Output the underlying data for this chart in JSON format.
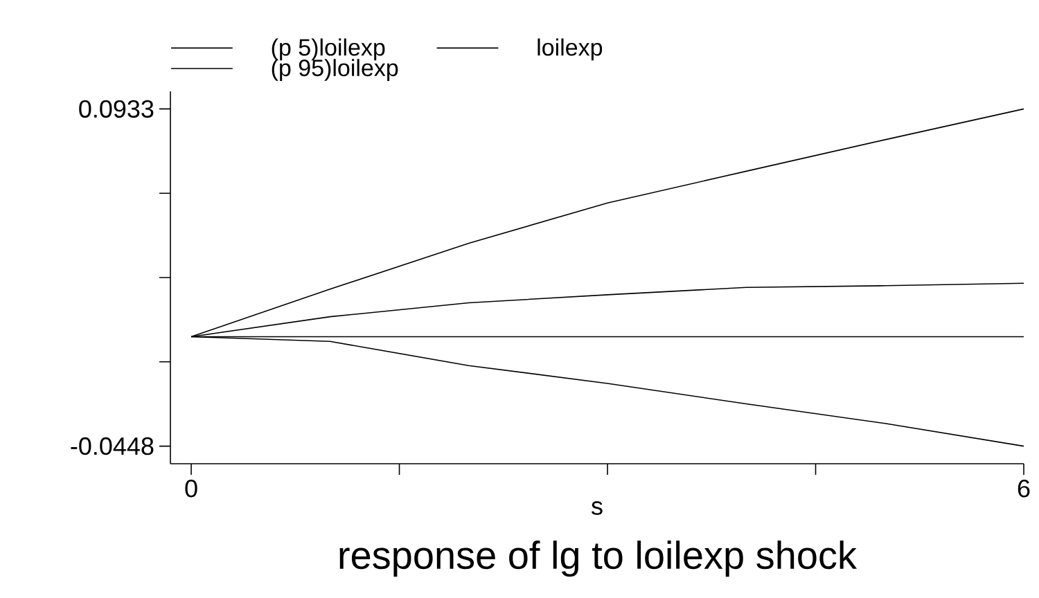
{
  "chart_data": {
    "type": "line",
    "title": "response of lg to loilexp shock",
    "xlabel": "s",
    "x": [
      0,
      1,
      2,
      3,
      4,
      5,
      6
    ],
    "series": [
      {
        "name": "(p 5)loilexp",
        "color": "#000000",
        "values": [
          0,
          -0.0019,
          -0.0118,
          -0.0191,
          -0.0275,
          -0.0355,
          -0.0448
        ]
      },
      {
        "name": "loilexp",
        "color": "#000000",
        "values": [
          0,
          0.0082,
          0.0139,
          0.0172,
          0.0202,
          0.0209,
          0.0219
        ]
      },
      {
        "name": "(p 95)loilexp",
        "color": "#000000",
        "values": [
          0,
          0.0195,
          0.0383,
          0.0548,
          0.0678,
          0.0807,
          0.0933
        ]
      }
    ],
    "xlim": [
      -0.15,
      6
    ],
    "ylim": [
      -0.052,
      0.1005
    ],
    "xticks": [
      0,
      {
        "value": 1.5,
        "label": null
      },
      {
        "value": 3,
        "label": null
      },
      {
        "value": 4.5,
        "label": null
      },
      6
    ],
    "yticks": [
      {
        "value": -0.0448,
        "label": "-0.0448"
      },
      {
        "value": -0.010275,
        "label": null
      },
      {
        "value": 0.02425,
        "label": null
      },
      {
        "value": 0.058775,
        "label": null
      },
      {
        "value": 0.0933,
        "label": "0.0933"
      }
    ],
    "ref_lines": [
      {
        "axis": "y",
        "value": 0,
        "color": "#000000"
      }
    ],
    "grid": false,
    "legend": "top",
    "marker": "none",
    "line_style": "solid"
  }
}
